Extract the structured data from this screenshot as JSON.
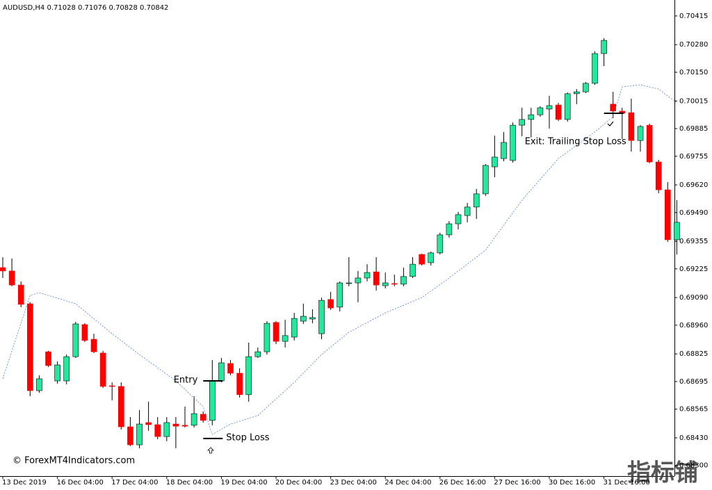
{
  "chart_data": {
    "type": "candlestick",
    "title": "AUDUSD,H4  0.71028 0.71076 0.70828 0.70842",
    "categories": [
      "13 Dec 2019",
      null,
      null,
      null,
      null,
      null,
      "16 Dec 04:00",
      null,
      null,
      null,
      null,
      null,
      "17 Dec 04:00",
      null,
      null,
      null,
      null,
      null,
      "18 Dec 04:00",
      null,
      null,
      null,
      null,
      null,
      "19 Dec 04:00",
      null,
      null,
      null,
      null,
      null,
      "20 Dec 04:00",
      null,
      null,
      null,
      null,
      null,
      "23 Dec 04:00",
      null,
      null,
      null,
      null,
      null,
      "24 Dec 04:00",
      null,
      null,
      null,
      null,
      null,
      "26 Dec 16:00",
      null,
      null,
      null,
      null,
      null,
      "27 Dec 16:00",
      null,
      null,
      null,
      null,
      null,
      "30 Dec 16:00",
      null,
      null,
      null,
      null,
      null,
      "31 Dec 16:00",
      null,
      null,
      null,
      null,
      null,
      null,
      null,
      null
    ],
    "open": [
      0.69231,
      0.69215,
      0.69149,
      0.69061,
      0.68652,
      0.68835,
      0.68698,
      0.68698,
      0.68812,
      0.68963,
      0.68894,
      0.68829,
      0.68675,
      0.68672,
      0.68482,
      0.68397,
      0.68502,
      0.68492,
      0.68436,
      0.68495,
      0.68489,
      0.68489,
      0.68541,
      0.68512,
      0.68698,
      0.6878,
      0.68734,
      0.68633,
      0.68812,
      0.68835,
      0.68973,
      0.68884,
      0.68904,
      0.68979,
      0.68989,
      0.6892,
      0.69081,
      0.69045,
      0.69156,
      0.69159,
      0.69182,
      0.69211,
      0.69146,
      0.69156,
      0.69153,
      0.69189,
      0.69293,
      0.69254,
      0.693,
      0.69385,
      0.69437,
      0.69476,
      0.69516,
      0.69578,
      0.69705,
      0.69744,
      0.69735,
      0.69901,
      0.69928,
      0.6995,
      0.69977,
      0.69996,
      0.69928,
      0.70049,
      0.70058,
      0.70098,
      0.70238,
      0.7,
      0.69967,
      0.6996,
      0.69829,
      0.69901,
      0.69728,
      0.69597,
      0.69362
    ],
    "high": [
      0.6928,
      0.69274,
      0.69166,
      0.69068,
      0.68724,
      0.68839,
      0.6879,
      0.68822,
      0.68976,
      0.68969,
      0.6892,
      0.68839,
      0.68691,
      0.68691,
      0.68528,
      0.68561,
      0.686,
      0.68528,
      0.68528,
      0.68528,
      0.68577,
      0.68626,
      0.68554,
      0.68796,
      0.68806,
      0.68796,
      0.68757,
      0.68878,
      0.68855,
      0.68979,
      0.68979,
      0.68986,
      0.69018,
      0.69061,
      0.69035,
      0.6909,
      0.69117,
      0.69166,
      0.6928,
      0.69215,
      0.69247,
      0.6928,
      0.69208,
      0.69198,
      0.69231,
      0.6928,
      0.69296,
      0.69306,
      0.69395,
      0.6945,
      0.69493,
      0.69535,
      0.69601,
      0.69718,
      0.69852,
      0.69869,
      0.69914,
      0.69983,
      0.69983,
      0.6999,
      0.70039,
      0.70006,
      0.70055,
      0.70071,
      0.70104,
      0.70248,
      0.7031,
      0.70058,
      0.69983,
      0.70026,
      0.69901,
      0.69908,
      0.69738,
      0.69633,
      0.69548
    ],
    "low": [
      0.69182,
      0.69143,
      0.69045,
      0.68626,
      0.68642,
      0.68763,
      0.68685,
      0.68682,
      0.68806,
      0.68881,
      0.68829,
      0.68665,
      0.68606,
      0.68469,
      0.68391,
      0.68381,
      0.68463,
      0.68423,
      0.68414,
      0.68381,
      0.68479,
      0.68479,
      0.68502,
      0.68489,
      0.68691,
      0.68724,
      0.6862,
      0.686,
      0.68806,
      0.68822,
      0.68871,
      0.68855,
      0.68888,
      0.68966,
      0.68969,
      0.68894,
      0.69032,
      0.69025,
      0.69143,
      0.69068,
      0.69166,
      0.69123,
      0.69133,
      0.69143,
      0.69143,
      0.69182,
      0.69241,
      0.69241,
      0.69293,
      0.69372,
      0.69411,
      0.69444,
      0.6946,
      0.69568,
      0.69656,
      0.69731,
      0.69725,
      0.69849,
      0.69843,
      0.69941,
      0.69885,
      0.69921,
      0.69918,
      0.7,
      0.70052,
      0.70091,
      0.70179,
      0.69934,
      0.69836,
      0.69777,
      0.69777,
      0.69722,
      0.69581,
      0.69352,
      0.69293
    ],
    "close": [
      0.69215,
      0.69149,
      0.69058,
      0.68652,
      0.68708,
      0.6877,
      0.68773,
      0.68812,
      0.68966,
      0.68888,
      0.68835,
      0.68672,
      0.68672,
      0.68482,
      0.68397,
      0.68495,
      0.68492,
      0.68436,
      0.68502,
      0.68485,
      0.68485,
      0.68544,
      0.68512,
      0.68698,
      0.68783,
      0.68734,
      0.68633,
      0.68812,
      0.68835,
      0.68969,
      0.68884,
      0.68911,
      0.68992,
      0.69002,
      0.68996,
      0.69077,
      0.69041,
      0.69159,
      0.69159,
      0.69182,
      0.69208,
      0.69149,
      0.69159,
      0.69153,
      0.69189,
      0.69247,
      0.69247,
      0.693,
      0.69385,
      0.69437,
      0.6948,
      0.69516,
      0.69578,
      0.69712,
      0.69751,
      0.6982,
      0.69901,
      0.69928,
      0.6995,
      0.69983,
      0.69993,
      0.69928,
      0.70049,
      0.70058,
      0.70098,
      0.70238,
      0.703,
      0.69967,
      0.69957,
      0.69829,
      0.69895,
      0.69728,
      0.69597,
      0.69362,
      0.69444
    ],
    "up_color": "#24e79b",
    "down_color": "#ff0000",
    "trail": {
      "color": "#4a7fd4",
      "x": [
        0,
        3,
        4,
        8,
        12,
        15,
        19,
        22,
        23,
        25,
        28,
        32,
        35,
        38,
        42,
        46,
        49,
        53,
        57,
        61,
        65,
        67,
        68,
        70,
        72,
        74
      ],
      "values": [
        0.68708,
        0.691,
        0.69113,
        0.69061,
        0.6892,
        0.68822,
        0.68698,
        0.68577,
        0.68446,
        0.68495,
        0.68535,
        0.68691,
        0.68822,
        0.68927,
        0.69018,
        0.6909,
        0.69182,
        0.69313,
        0.69548,
        0.69744,
        0.69869,
        0.69941,
        0.70081,
        0.70091,
        0.70071,
        0.70006
      ]
    },
    "levels": [
      {
        "label": "Entry",
        "value": 0.68698,
        "x": 23
      },
      {
        "label": "Stop Loss",
        "value": 0.68427,
        "x": 23
      },
      {
        "label": "Exit: Trailing Stop Loss",
        "value": 0.69957,
        "x": 67
      }
    ],
    "ylim": [
      0.6825,
      0.7049
    ],
    "yticks": [
      0.70415,
      {
        "value": 0.7028,
        "label": "0.70280"
      },
      {
        "value": 0.7015,
        "label": "0.70150"
      },
      0.70015,
      0.69885,
      0.69755,
      {
        "value": 0.6962,
        "label": "0.69620"
      },
      {
        "value": 0.6949,
        "label": "0.69490"
      },
      0.69355,
      0.69225,
      {
        "value": 0.6909,
        "label": "0.69090"
      },
      {
        "value": 0.6896,
        "label": "0.68960"
      },
      0.68825,
      0.68695,
      0.68565,
      {
        "value": 0.6843,
        "label": "0.68430"
      },
      {
        "value": 0.683,
        "label": "0.68300"
      }
    ],
    "copyright": "© ForexMT4Indicators.com",
    "watermark": "指标铺"
  }
}
